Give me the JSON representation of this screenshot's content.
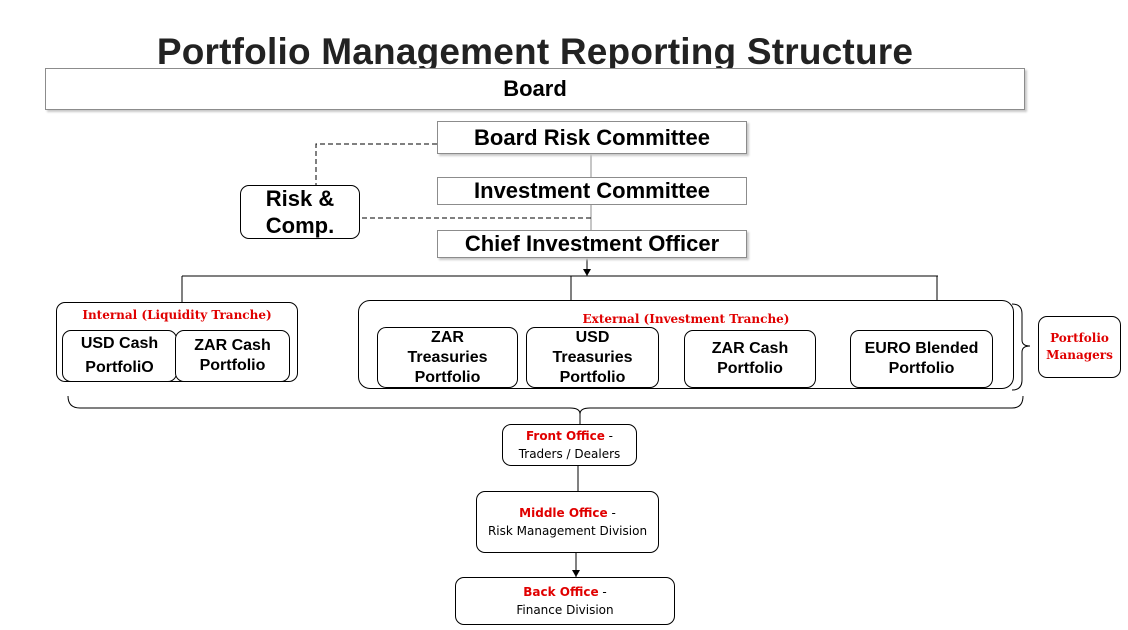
{
  "title": "Portfolio Management Reporting Structure",
  "board": "Board",
  "board_risk_committee": "Board Risk Committee",
  "investment_committee": "Investment Committee",
  "chief_investment_officer": "Chief Investment Officer",
  "risk_comp": {
    "line1": "Risk &",
    "line2": "Comp."
  },
  "internal_group": {
    "label": "Internal (Liquidity Tranche)",
    "portfolios": [
      {
        "line1": "USD Cash",
        "line2": "PortfoliO"
      },
      {
        "line1": "ZAR Cash",
        "line2": "Portfolio"
      }
    ]
  },
  "external_group": {
    "label": "External (Investment Tranche)",
    "portfolios": [
      {
        "line1": "ZAR",
        "line2": "Treasuries",
        "line3": "Portfolio"
      },
      {
        "line1": "USD",
        "line2": "Treasuries",
        "line3": "Portfolio"
      },
      {
        "line1": "ZAR Cash",
        "line2": "Portfolio"
      },
      {
        "line1": "EURO Blended",
        "line2": "Portfolio"
      }
    ]
  },
  "portfolio_managers": {
    "line1": "Portfolio",
    "line2": "Managers"
  },
  "front_office": {
    "label": "Front Office",
    "sep": " -",
    "detail": "Traders / Dealers"
  },
  "middle_office": {
    "label": "Middle Office",
    "sep": " -",
    "detail": "Risk Management Division"
  },
  "back_office": {
    "label": "Back Office",
    "sep": " -",
    "detail": "Finance Division"
  },
  "colors": {
    "accent_red": "#e00000",
    "box_border": "#8c8c8c",
    "title": "#222222"
  }
}
